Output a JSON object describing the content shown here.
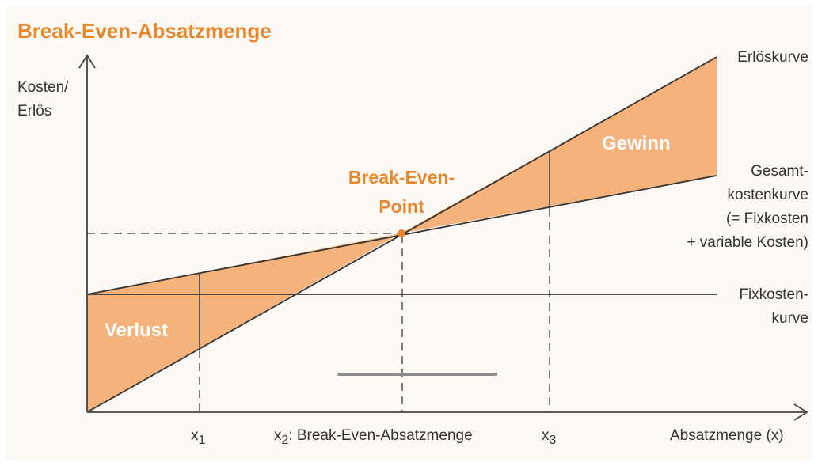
{
  "title": "Break-Even-Absatzmenge",
  "y_axis_label": [
    "Kosten/",
    "Erlös"
  ],
  "x_axis_label": "Absatzmenge (x)",
  "curves": {
    "revenue": "Erlöskurve",
    "total_cost": [
      "Gesamt-",
      "kostenkurve",
      "(= Fixkosten",
      "+ variable Kosten)"
    ],
    "fixed_cost": [
      "Fixkosten-",
      "kurve"
    ]
  },
  "break_even_point": [
    "Break-Even-",
    "Point"
  ],
  "regions": {
    "loss": "Verlust",
    "profit": "Gewinn"
  },
  "x_markers": {
    "x1": {
      "main": "x",
      "sub": "1",
      "rest": ""
    },
    "x2": {
      "main": "x",
      "sub": "2",
      "rest": ": Break-Even-Absatzmenge"
    },
    "x3": {
      "main": "x",
      "sub": "3",
      "rest": ""
    }
  },
  "colors": {
    "accent": "#e8872e",
    "fill": "#f5b27a",
    "line": "#333333"
  }
}
